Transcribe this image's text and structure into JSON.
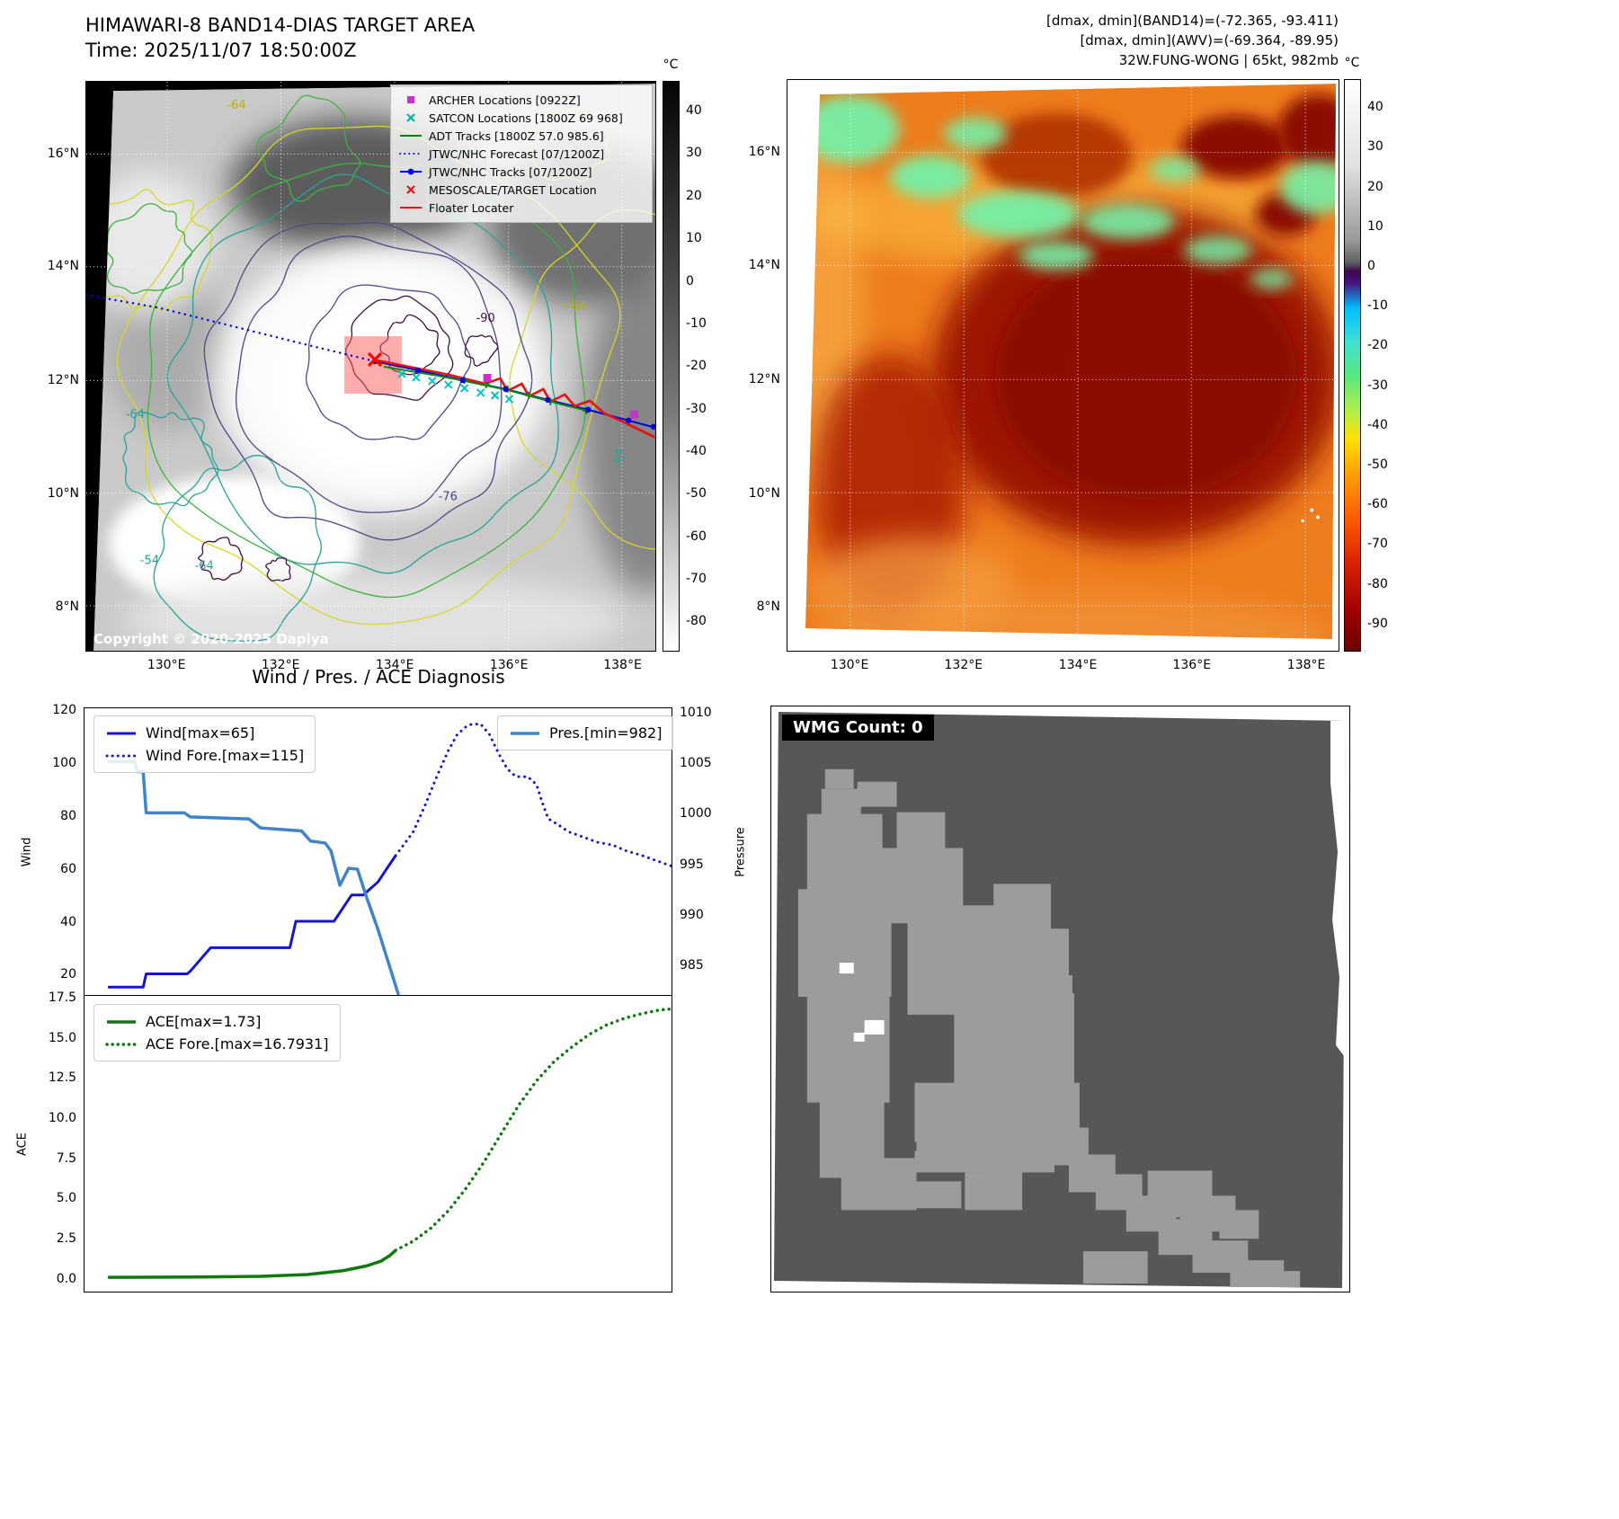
{
  "band14_panel": {
    "title": "HIMAWARI-8 BAND14-DIAS TARGET AREA",
    "time_line": "Time: 2025/11/07 18:50:00Z",
    "copyright": "Copyright © 2020-2025 Dapiya",
    "colorbar_unit": "°C",
    "colorbar_ticks": [
      "40",
      "30",
      "20",
      "10",
      "0",
      "-10",
      "-20",
      "-30",
      "-40",
      "-50",
      "-60",
      "-70",
      "-80"
    ],
    "lat_ticks": [
      "16°N",
      "14°N",
      "12°N",
      "10°N",
      "8°N"
    ],
    "lon_ticks": [
      "130°E",
      "132°E",
      "134°E",
      "136°E",
      "138°E"
    ],
    "legend": [
      {
        "label": "ARCHER Locations [0922Z]",
        "marker": "square",
        "color": "#c832c8"
      },
      {
        "label": "SATCON Locations [1800Z 69 968]",
        "marker": "x",
        "color": "#00b4b4"
      },
      {
        "label": "ADT Tracks [1800Z 57.0 985.6]",
        "marker": "line",
        "color": "#008000"
      },
      {
        "label": "JTWC/NHC Forecast [07/1200Z]",
        "marker": "dotted",
        "color": "#0000ee"
      },
      {
        "label": "JTWC/NHC Tracks [07/1200Z]",
        "marker": "line-dot",
        "color": "#0000ee"
      },
      {
        "label": "MESOSCALE/TARGET Location",
        "marker": "x",
        "color": "#ee1111"
      },
      {
        "label": "Floater Locater",
        "marker": "line",
        "color": "#ee1111"
      }
    ],
    "contour_labels": [
      {
        "text": "-64",
        "color": "#b8b400",
        "fx": 0.247,
        "fy": 0.048,
        "rotate": 0
      },
      {
        "text": "-64",
        "color": "#b8b400",
        "fx": 0.845,
        "fy": 0.401,
        "rotate": 0
      },
      {
        "text": "-90",
        "color": "#3f0d40",
        "fx": 0.685,
        "fy": 0.422,
        "rotate": 0
      },
      {
        "text": "-76",
        "color": "#45457e",
        "fx": 0.619,
        "fy": 0.735,
        "rotate": 0
      },
      {
        "text": "-54",
        "color": "#2aa198",
        "fx": 0.094,
        "fy": 0.847,
        "rotate": 0
      },
      {
        "text": "-64",
        "color": "#2aa198",
        "fx": 0.19,
        "fy": 0.856,
        "rotate": 0
      },
      {
        "text": "-64",
        "color": "#2aa198",
        "fx": 0.07,
        "fy": 0.59,
        "rotate": 0
      },
      {
        "text": "-54",
        "color": "#2aa198",
        "fx": 0.945,
        "fy": 0.677,
        "rotate": -90
      }
    ]
  },
  "awv_panel": {
    "header_lines": [
      "[dmax, dmin](BAND14)=(-72.365, -93.411)",
      "[dmax, dmin](AWV)=(-69.364, -89.95)",
      "32W.FUNG-WONG | 65kt, 982mb"
    ],
    "colorbar_unit": "°C",
    "colorbar_ticks": [
      "40",
      "30",
      "20",
      "10",
      "0",
      "-10",
      "-20",
      "-30",
      "-40",
      "-50",
      "-60",
      "-70",
      "-80",
      "-90"
    ],
    "lat_ticks": [
      "16°N",
      "14°N",
      "12°N",
      "10°N",
      "8°N"
    ],
    "lon_ticks": [
      "130°E",
      "132°E",
      "134°E",
      "136°E",
      "138°E"
    ]
  },
  "diagnosis_title": "Wind / Pres. / ACE Diagnosis",
  "wmg_panel": {
    "label": "WMG Count: 0"
  },
  "chart_data": [
    {
      "type": "line",
      "title": "Wind / Pres. / ACE Diagnosis",
      "xlim": [
        0,
        1
      ],
      "ylabel_left": "Wind",
      "ylabel_right": "Pressure",
      "ylim_left": [
        12,
        121
      ],
      "ylim_right": [
        982,
        1010.5
      ],
      "yticks_left": [
        "120",
        "100",
        "80",
        "60",
        "40",
        "20"
      ],
      "yticks_left_vals": [
        120,
        100,
        80,
        60,
        40,
        20
      ],
      "yticks_right": [
        "1010",
        "1005",
        "1000",
        "995",
        "990",
        "985"
      ],
      "yticks_right_vals": [
        1010,
        1005,
        1000,
        995,
        990,
        985
      ],
      "grid": false,
      "legend_positions": [
        "upper-left",
        "upper-right"
      ],
      "series": [
        {
          "name": "Wind[max=65]",
          "axis": "left",
          "style": "solid",
          "color": "#1515d0",
          "width": 3,
          "points": [
            [
              0.04,
              15
            ],
            [
              0.1,
              15
            ],
            [
              0.105,
              20
            ],
            [
              0.175,
              20
            ],
            [
              0.18,
              21
            ],
            [
              0.215,
              30
            ],
            [
              0.35,
              30
            ],
            [
              0.36,
              40
            ],
            [
              0.425,
              40
            ],
            [
              0.44,
              45
            ],
            [
              0.455,
              50
            ],
            [
              0.475,
              50
            ],
            [
              0.5,
              55
            ],
            [
              0.515,
              60
            ],
            [
              0.53,
              65
            ]
          ]
        },
        {
          "name": "Wind Fore.[max=115]",
          "axis": "left",
          "style": "dotted",
          "color": "#1515d0",
          "width": 3,
          "points": [
            [
              0.53,
              65
            ],
            [
              0.56,
              74
            ],
            [
              0.58,
              84
            ],
            [
              0.6,
              95
            ],
            [
              0.62,
              105
            ],
            [
              0.635,
              111
            ],
            [
              0.65,
              114
            ],
            [
              0.66,
              115
            ],
            [
              0.675,
              115
            ],
            [
              0.69,
              111
            ],
            [
              0.705,
              104
            ],
            [
              0.72,
              98
            ],
            [
              0.735,
              95
            ],
            [
              0.755,
              95
            ],
            [
              0.77,
              92
            ],
            [
              0.78,
              85
            ],
            [
              0.79,
              79
            ],
            [
              0.805,
              77
            ],
            [
              0.825,
              74
            ],
            [
              0.85,
              72
            ],
            [
              0.875,
              70
            ],
            [
              0.9,
              69
            ],
            [
              0.92,
              67
            ],
            [
              0.95,
              65
            ],
            [
              0.975,
              63
            ],
            [
              1.0,
              61
            ]
          ]
        },
        {
          "name": "Pres.[min=982]",
          "axis": "right",
          "style": "solid",
          "color": "#3d85c8",
          "width": 3.5,
          "points": [
            [
              0.04,
              1005.2
            ],
            [
              0.085,
              1005.2
            ],
            [
              0.09,
              1004.2
            ],
            [
              0.1,
              1004.2
            ],
            [
              0.105,
              1000.1
            ],
            [
              0.17,
              1000.1
            ],
            [
              0.18,
              999.7
            ],
            [
              0.28,
              999.5
            ],
            [
              0.3,
              998.6
            ],
            [
              0.37,
              998.3
            ],
            [
              0.385,
              997.3
            ],
            [
              0.41,
              997.1
            ],
            [
              0.42,
              996.3
            ],
            [
              0.435,
              992.9
            ],
            [
              0.45,
              994.6
            ],
            [
              0.465,
              994.5
            ],
            [
              0.48,
              991.8
            ],
            [
              0.5,
              988.5
            ],
            [
              0.52,
              984.8
            ],
            [
              0.535,
              982.0
            ]
          ]
        }
      ]
    },
    {
      "type": "line",
      "xlim": [
        0,
        1
      ],
      "ylabel": "ACE",
      "ylim": [
        -0.85,
        17.6
      ],
      "yticks": [
        "17.5",
        "15.0",
        "12.5",
        "10.0",
        "7.5",
        "5.0",
        "2.5",
        "0.0"
      ],
      "yticks_vals": [
        17.5,
        15.0,
        12.5,
        10.0,
        7.5,
        5.0,
        2.5,
        0.0
      ],
      "grid": false,
      "legend_positions": [
        "upper-left"
      ],
      "series": [
        {
          "name": "ACE[max=1.73]",
          "style": "solid",
          "color": "#0e7a0e",
          "width": 3.5,
          "points": [
            [
              0.04,
              0.04
            ],
            [
              0.2,
              0.06
            ],
            [
              0.3,
              0.1
            ],
            [
              0.38,
              0.22
            ],
            [
              0.44,
              0.45
            ],
            [
              0.48,
              0.75
            ],
            [
              0.505,
              1.05
            ],
            [
              0.52,
              1.4
            ],
            [
              0.53,
              1.73
            ]
          ]
        },
        {
          "name": "ACE Fore.[max=16.7931]",
          "style": "dotted",
          "color": "#0e7a0e",
          "width": 3.5,
          "points": [
            [
              0.53,
              1.73
            ],
            [
              0.56,
              2.3
            ],
            [
              0.59,
              3.1
            ],
            [
              0.62,
              4.2
            ],
            [
              0.65,
              5.6
            ],
            [
              0.68,
              7.2
            ],
            [
              0.71,
              9.0
            ],
            [
              0.74,
              10.8
            ],
            [
              0.77,
              12.3
            ],
            [
              0.8,
              13.5
            ],
            [
              0.83,
              14.4
            ],
            [
              0.86,
              15.2
            ],
            [
              0.89,
              15.8
            ],
            [
              0.92,
              16.2
            ],
            [
              0.95,
              16.5
            ],
            [
              0.98,
              16.72
            ],
            [
              1.0,
              16.79
            ]
          ]
        }
      ]
    }
  ]
}
